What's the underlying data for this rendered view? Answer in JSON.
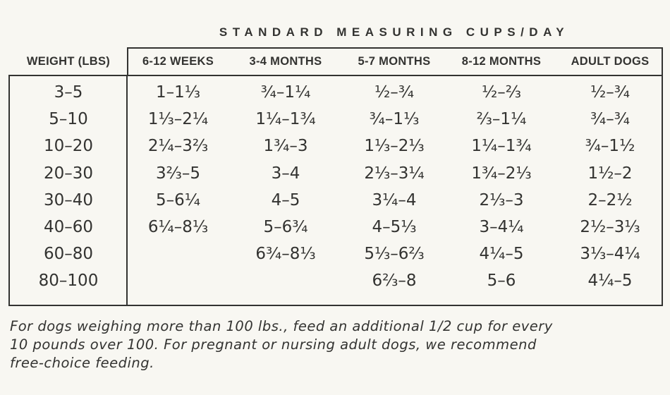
{
  "title": "STANDARD MEASURING CUPS/DAY",
  "headers": {
    "weight": "WEIGHT (LBS)",
    "columns": [
      "6-12 WEEKS",
      "3-4 MONTHS",
      "5-7 MONTHS",
      "8-12 MONTHS",
      "ADULT DOGS"
    ]
  },
  "rows": [
    {
      "weight": "3–5",
      "values": [
        "1–1⅓",
        "¾–1¼",
        "½–¾",
        "½–⅔",
        "½–¾"
      ]
    },
    {
      "weight": "5–10",
      "values": [
        "1⅓–2¼",
        "1¼–1¾",
        "¾–1⅓",
        "⅔–1¼",
        "¾–¾"
      ]
    },
    {
      "weight": "10–20",
      "values": [
        "2¼–3⅔",
        "1¾–3",
        "1⅓–2⅓",
        "1¼–1¾",
        "¾–1½"
      ]
    },
    {
      "weight": "20–30",
      "values": [
        "3⅔–5",
        "3–4",
        "2⅓–3¼",
        "1¾–2⅓",
        "1½–2"
      ]
    },
    {
      "weight": "30–40",
      "values": [
        "5–6¼",
        "4–5",
        "3¼–4",
        "2⅓–3",
        "2–2½"
      ]
    },
    {
      "weight": "40–60",
      "values": [
        "6¼–8⅓",
        "5–6¾",
        "4–5⅓",
        "3–4¼",
        "2½–3⅓"
      ]
    },
    {
      "weight": "60–80",
      "values": [
        "",
        "6¾–8⅓",
        "5⅓–6⅔",
        "4¼–5",
        "3⅓–4¼"
      ]
    },
    {
      "weight": "80–100",
      "values": [
        "",
        "",
        "6⅔–8",
        "5–6",
        "4¼–5"
      ]
    }
  ],
  "footnote": [
    "For dogs weighing more than 100 lbs., feed an additional 1/2 cup for every",
    "10 pounds over 100. For pregnant or nursing adult dogs, we recommend",
    "free-choice feeding."
  ]
}
